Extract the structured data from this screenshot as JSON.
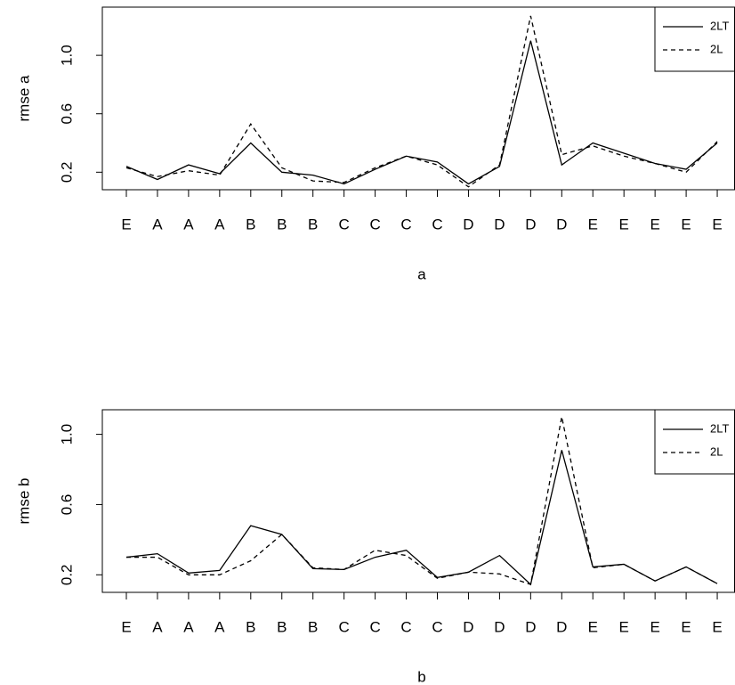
{
  "chart_data": [
    {
      "type": "line",
      "y_label": "rmse a",
      "x_label": "a",
      "categories": [
        "E",
        "A",
        "A",
        "A",
        "B",
        "B",
        "B",
        "C",
        "C",
        "C",
        "C",
        "D",
        "D",
        "D",
        "D",
        "E",
        "E",
        "E",
        "E",
        "E"
      ],
      "series": [
        {
          "name": "2LT",
          "color": "#000000",
          "linestyle": "solid",
          "values": [
            0.24,
            0.15,
            0.25,
            0.19,
            0.4,
            0.2,
            0.18,
            0.12,
            0.22,
            0.31,
            0.27,
            0.12,
            0.24,
            1.1,
            0.25,
            0.4,
            0.33,
            0.26,
            0.22,
            0.4
          ]
        },
        {
          "name": "2L",
          "color": "#000000",
          "linestyle": "dashed",
          "values": [
            0.23,
            0.17,
            0.21,
            0.18,
            0.53,
            0.23,
            0.14,
            0.13,
            0.23,
            0.31,
            0.25,
            0.1,
            0.25,
            1.27,
            0.32,
            0.38,
            0.31,
            0.26,
            0.2,
            0.41
          ]
        }
      ],
      "ylim": [
        0.08,
        1.33
      ],
      "yticks": [
        0.2,
        0.6,
        {
          "value": 1.0,
          "label": "1.0"
        }
      ],
      "legend": "topright"
    },
    {
      "type": "line",
      "y_label": "rmse b",
      "x_label": "b",
      "categories": [
        "E",
        "A",
        "A",
        "A",
        "B",
        "B",
        "B",
        "C",
        "C",
        "C",
        "C",
        "D",
        "D",
        "D",
        "D",
        "E",
        "E",
        "E",
        "E",
        "E"
      ],
      "series": [
        {
          "name": "2LT",
          "color": "#000000",
          "linestyle": "solid",
          "values": [
            0.3,
            0.32,
            0.21,
            0.225,
            0.48,
            0.43,
            0.235,
            0.23,
            0.3,
            0.34,
            0.185,
            0.215,
            0.31,
            0.145,
            0.91,
            0.245,
            0.26,
            0.165,
            0.245,
            0.15
          ]
        },
        {
          "name": "2L",
          "color": "#000000",
          "linestyle": "dashed",
          "values": [
            0.3,
            0.3,
            0.2,
            0.2,
            0.28,
            0.43,
            0.24,
            0.23,
            0.34,
            0.31,
            0.18,
            0.215,
            0.205,
            0.145,
            1.1,
            0.24,
            0.26,
            0.165,
            0.245,
            0.15
          ]
        }
      ],
      "ylim": [
        0.1,
        1.14
      ],
      "yticks": [
        0.2,
        0.6,
        {
          "value": 1.0,
          "label": "1.0"
        }
      ],
      "legend": "topright"
    }
  ]
}
